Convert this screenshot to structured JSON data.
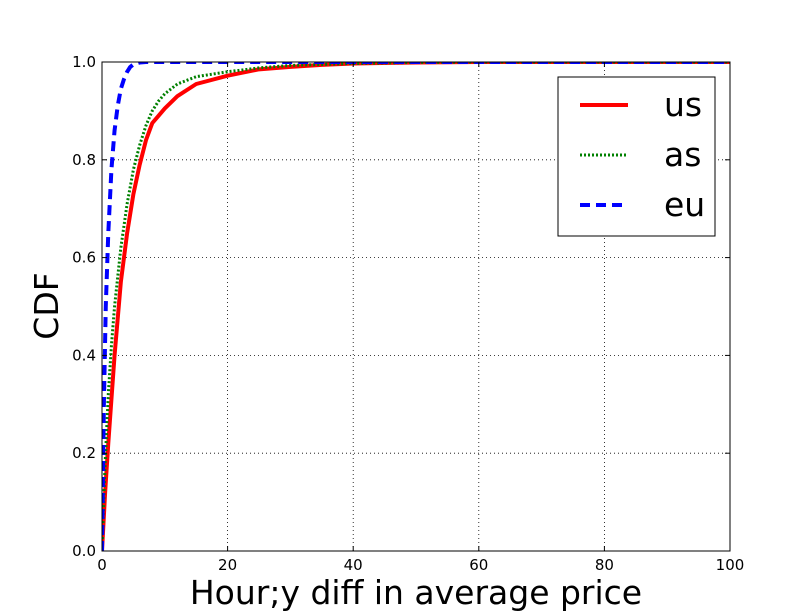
{
  "chart_data": {
    "type": "line",
    "title": "",
    "xlabel": "Hour;y diff in average price",
    "ylabel": "CDF",
    "xlim": [
      0,
      100
    ],
    "ylim": [
      0,
      1.0
    ],
    "x_ticks": [
      "0",
      "20",
      "40",
      "60",
      "80",
      "100"
    ],
    "y_ticks": [
      "0.0",
      "0.2",
      "0.4",
      "0.6",
      "0.8",
      "1.0"
    ],
    "grid": true,
    "legend_position": "top-right",
    "series": [
      {
        "name": "us",
        "color": "#ff0000",
        "style": "solid",
        "x": [
          0,
          0.5,
          1,
          1.5,
          2,
          3,
          4,
          5,
          6,
          7,
          8,
          9,
          10,
          12,
          15,
          20,
          25,
          30,
          35,
          40,
          50,
          60,
          70,
          80,
          90,
          100
        ],
        "y": [
          0,
          0.12,
          0.22,
          0.31,
          0.4,
          0.55,
          0.65,
          0.73,
          0.79,
          0.84,
          0.875,
          0.89,
          0.905,
          0.93,
          0.955,
          0.972,
          0.985,
          0.99,
          0.994,
          0.997,
          0.999,
          1.0,
          1.0,
          1.0,
          1.0,
          1.0
        ]
      },
      {
        "name": "as",
        "color": "#008000",
        "style": "dotted",
        "x": [
          0,
          0.5,
          1,
          1.5,
          2,
          3,
          4,
          5,
          6,
          7,
          8,
          9,
          10,
          12,
          15,
          20,
          25,
          30,
          40,
          50,
          60,
          80,
          100
        ],
        "y": [
          0,
          0.18,
          0.32,
          0.42,
          0.5,
          0.62,
          0.71,
          0.78,
          0.83,
          0.87,
          0.9,
          0.92,
          0.935,
          0.955,
          0.97,
          0.98,
          0.988,
          0.993,
          0.997,
          0.999,
          1.0,
          1.0,
          1.0
        ]
      },
      {
        "name": "eu",
        "color": "#0000ff",
        "style": "dashed",
        "x": [
          0,
          0.3,
          0.6,
          1,
          1.5,
          2,
          2.5,
          3,
          3.5,
          4,
          4.5,
          5,
          6,
          7,
          8,
          10,
          20,
          50,
          100
        ],
        "y": [
          0,
          0.3,
          0.5,
          0.65,
          0.78,
          0.86,
          0.91,
          0.945,
          0.965,
          0.98,
          0.99,
          0.995,
          0.999,
          1.0,
          1.0,
          1.0,
          1.0,
          1.0,
          1.0
        ]
      }
    ]
  }
}
